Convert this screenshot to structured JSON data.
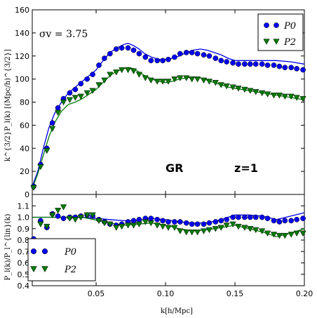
{
  "chart_data": [
    {
      "type": "line",
      "panel": "top",
      "xlim": [
        0.004,
        0.2
      ],
      "ylim": [
        0,
        160
      ],
      "yticks": [
        0,
        20,
        40,
        60,
        80,
        100,
        120,
        140,
        160
      ],
      "ylabel": "k^{3/2}P_l(k) [(Mpc/h)^{3/2}]",
      "annotations": {
        "sigma": "σv = 3.75",
        "model": "GR",
        "redshift": "z=1"
      },
      "legend": {
        "placement": "top-right",
        "entries": [
          "P0",
          "P2"
        ]
      },
      "series": [
        {
          "name": "P0",
          "marker": "circle",
          "color": "#0000ee",
          "x": [
            0.005,
            0.01,
            0.0145,
            0.0185,
            0.0225,
            0.0265,
            0.031,
            0.035,
            0.039,
            0.0435,
            0.0475,
            0.052,
            0.056,
            0.06,
            0.0645,
            0.0685,
            0.073,
            0.077,
            0.081,
            0.0855,
            0.0895,
            0.094,
            0.098,
            0.102,
            0.1065,
            0.1105,
            0.115,
            0.119,
            0.123,
            0.1275,
            0.1315,
            0.136,
            0.14,
            0.144,
            0.1485,
            0.1525,
            0.157,
            0.161,
            0.165,
            0.1695,
            0.1735,
            0.178,
            0.182,
            0.186,
            0.1905,
            0.1945,
            0.199
          ],
          "values": [
            7,
            26,
            40,
            62,
            75,
            83,
            88,
            91,
            96,
            100,
            104,
            112,
            118,
            122,
            126,
            127,
            127,
            125,
            122,
            119,
            116,
            116,
            116,
            117,
            119,
            122,
            123,
            123,
            122,
            121,
            120,
            118,
            116,
            115,
            114,
            113,
            113,
            113,
            113,
            113,
            112,
            112,
            111,
            110,
            110,
            109,
            108
          ]
        },
        {
          "name": "P2",
          "marker": "triangle-down",
          "color": "#007a00",
          "x": [
            0.005,
            0.01,
            0.0145,
            0.0185,
            0.0225,
            0.0265,
            0.031,
            0.035,
            0.039,
            0.0435,
            0.0475,
            0.052,
            0.056,
            0.06,
            0.0645,
            0.0685,
            0.073,
            0.077,
            0.081,
            0.0855,
            0.0895,
            0.094,
            0.098,
            0.102,
            0.1065,
            0.1105,
            0.115,
            0.119,
            0.123,
            0.1275,
            0.1315,
            0.136,
            0.14,
            0.144,
            0.1485,
            0.1525,
            0.157,
            0.161,
            0.165,
            0.1695,
            0.1735,
            0.178,
            0.182,
            0.186,
            0.1905,
            0.1945,
            0.199
          ],
          "values": [
            6,
            24,
            38,
            57,
            71,
            80,
            82,
            84,
            85,
            88,
            90,
            95,
            99,
            104,
            106,
            108,
            108,
            107,
            104,
            101,
            99,
            98,
            98,
            98,
            100,
            101,
            101,
            100,
            100,
            99,
            98,
            97,
            95,
            94,
            93,
            92,
            91,
            90,
            89,
            88,
            87,
            86,
            86,
            85,
            85,
            84,
            83
          ]
        }
      ],
      "model_lines": [
        {
          "color": "#0000ee",
          "x": [
            0.004,
            0.008,
            0.012,
            0.016,
            0.02,
            0.025,
            0.03,
            0.035,
            0.04,
            0.045,
            0.05,
            0.055,
            0.06,
            0.065,
            0.07,
            0.073,
            0.077,
            0.081,
            0.085,
            0.09,
            0.095,
            0.1,
            0.105,
            0.11,
            0.115,
            0.12,
            0.125,
            0.13,
            0.135,
            0.14,
            0.145,
            0.15,
            0.16,
            0.17,
            0.18,
            0.19,
            0.2
          ],
          "values": [
            7,
            20,
            40,
            58,
            70,
            80,
            88,
            93,
            98,
            103,
            108,
            116,
            123,
            127,
            130,
            131,
            129,
            126,
            122,
            119,
            117,
            117,
            118,
            120,
            123,
            125,
            126,
            125,
            123,
            121,
            118,
            116,
            116,
            116,
            116,
            115,
            113
          ]
        },
        {
          "color": "#007a00",
          "x": [
            0.004,
            0.008,
            0.012,
            0.016,
            0.02,
            0.025,
            0.03,
            0.035,
            0.04,
            0.045,
            0.05,
            0.055,
            0.06,
            0.065,
            0.07,
            0.073,
            0.077,
            0.081,
            0.085,
            0.09,
            0.095,
            0.1,
            0.105,
            0.11,
            0.115,
            0.12,
            0.125,
            0.13,
            0.135,
            0.14,
            0.145,
            0.15,
            0.16,
            0.17,
            0.18,
            0.19,
            0.2
          ],
          "values": [
            5,
            18,
            34,
            50,
            62,
            72,
            78,
            80,
            83,
            87,
            91,
            97,
            103,
            107,
            109,
            110,
            109,
            106,
            103,
            100,
            98,
            97,
            98,
            100,
            101,
            102,
            101,
            99,
            97,
            95,
            93,
            92,
            90,
            88,
            86,
            84,
            82
          ]
        }
      ]
    },
    {
      "type": "line",
      "panel": "bottom",
      "xlim": [
        0.004,
        0.2
      ],
      "ylim": [
        0.4,
        1.2
      ],
      "yticks": [
        0.4,
        0.5,
        0.6,
        0.7,
        0.8,
        0.9,
        1.0,
        1.1
      ],
      "xticks": [
        0.05,
        0.1,
        0.15,
        0.2
      ],
      "xtick_labels": [
        "0.05",
        "0.10",
        "0.15",
        "0.20"
      ],
      "xlabel": "k[h/Mpc]",
      "ylabel": "P_l(k)/P_l^{lin}(k)",
      "legend": {
        "placement": "bottom-left",
        "entries": [
          "P0",
          "P2"
        ]
      },
      "series": [
        {
          "name": "P0",
          "marker": "circle",
          "color": "#0000ee",
          "x": [
            0.005,
            0.01,
            0.0145,
            0.0185,
            0.0225,
            0.0265,
            0.031,
            0.035,
            0.039,
            0.0435,
            0.0475,
            0.052,
            0.056,
            0.06,
            0.0645,
            0.0685,
            0.073,
            0.077,
            0.081,
            0.0855,
            0.0895,
            0.094,
            0.098,
            0.102,
            0.1065,
            0.1105,
            0.115,
            0.119,
            0.123,
            0.1275,
            0.1315,
            0.136,
            0.14,
            0.144,
            0.1485,
            0.1525,
            0.157,
            0.161,
            0.165,
            0.1695,
            0.1735,
            0.178,
            0.182,
            0.186,
            0.1905,
            0.1945,
            0.199
          ],
          "values": [
            0.81,
            0.97,
            0.91,
            1.03,
            1.01,
            0.99,
            1.0,
            1.0,
            1.01,
            1.02,
            1.01,
            0.98,
            0.96,
            0.94,
            0.93,
            0.94,
            0.96,
            0.97,
            0.98,
            0.99,
            0.99,
            0.98,
            0.97,
            0.96,
            0.96,
            0.96,
            0.95,
            0.94,
            0.94,
            0.94,
            0.95,
            0.96,
            0.97,
            0.98,
            1.0,
            1.0,
            1.0,
            1.0,
            1.0,
            1.0,
            0.99,
            0.97,
            0.96,
            0.97,
            0.97,
            0.98,
            0.99
          ]
        },
        {
          "name": "P2",
          "marker": "triangle-down",
          "color": "#007a00",
          "x": [
            0.005,
            0.01,
            0.0145,
            0.0185,
            0.0225,
            0.0265,
            0.031,
            0.035,
            0.039,
            0.0435,
            0.0475,
            0.052,
            0.056,
            0.06,
            0.0645,
            0.0685,
            0.073,
            0.077,
            0.081,
            0.0855,
            0.0895,
            0.094,
            0.098,
            0.102,
            0.1065,
            0.1105,
            0.115,
            0.119,
            0.123,
            0.1275,
            0.1315,
            0.136,
            0.14,
            0.144,
            0.1485,
            0.1525,
            0.157,
            0.161,
            0.165,
            0.1695,
            0.1735,
            0.178,
            0.182,
            0.186,
            0.1905,
            0.1945,
            0.199
          ],
          "values": [
            0.76,
            0.94,
            0.92,
            1.02,
            1.06,
            1.09,
            0.99,
            0.98,
            1.0,
            1.02,
            1.02,
            0.97,
            0.95,
            0.94,
            0.91,
            0.92,
            0.93,
            0.93,
            0.94,
            0.96,
            0.95,
            0.93,
            0.92,
            0.91,
            0.91,
            0.88,
            0.87,
            0.87,
            0.87,
            0.88,
            0.89,
            0.9,
            0.91,
            0.93,
            0.94,
            0.92,
            0.91,
            0.9,
            0.89,
            0.88,
            0.86,
            0.85,
            0.84,
            0.84,
            0.85,
            0.86,
            0.86
          ]
        }
      ],
      "model_lines": [
        {
          "color": "#0000ee",
          "x": [
            0.004,
            0.02,
            0.04,
            0.06,
            0.07,
            0.08,
            0.09,
            0.1,
            0.11,
            0.12,
            0.13,
            0.14,
            0.15,
            0.16,
            0.17,
            0.18,
            0.19,
            0.2
          ],
          "values": [
            1.0,
            1.0,
            1.0,
            0.98,
            0.97,
            0.97,
            0.99,
            0.98,
            0.96,
            0.95,
            0.95,
            0.98,
            1.02,
            1.02,
            1.01,
            0.98,
            1.01,
            1.04
          ]
        },
        {
          "color": "#007a00",
          "x": [
            0.004,
            0.02,
            0.04,
            0.06,
            0.07,
            0.08,
            0.09,
            0.1,
            0.11,
            0.12,
            0.13,
            0.14,
            0.15,
            0.16,
            0.17,
            0.18,
            0.19,
            0.2
          ],
          "values": [
            1.0,
            1.0,
            1.0,
            0.95,
            0.93,
            0.94,
            0.95,
            0.93,
            0.9,
            0.88,
            0.89,
            0.91,
            0.93,
            0.9,
            0.87,
            0.83,
            0.86,
            0.9
          ]
        }
      ]
    }
  ]
}
